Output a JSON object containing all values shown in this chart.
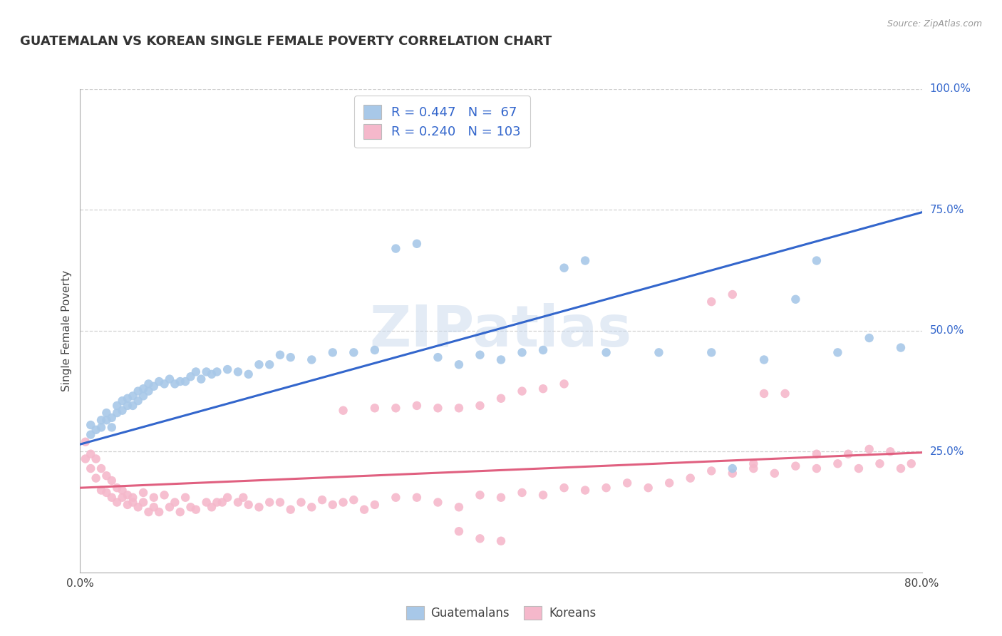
{
  "title": "GUATEMALAN VS KOREAN SINGLE FEMALE POVERTY CORRELATION CHART",
  "source": "Source: ZipAtlas.com",
  "ylabel": "Single Female Poverty",
  "legend_label_1": "Guatemalans",
  "legend_label_2": "Koreans",
  "R1": 0.447,
  "N1": 67,
  "R2": 0.24,
  "N2": 103,
  "blue_color": "#a8c8e8",
  "pink_color": "#f5b8cb",
  "line_blue": "#3366cc",
  "line_pink": "#e06080",
  "ytick_vals": [
    0.25,
    0.5,
    0.75,
    1.0
  ],
  "ytick_labels": [
    "25.0%",
    "50.0%",
    "75.0%",
    "100.0%"
  ],
  "blue_line_x0": 0.0,
  "blue_line_y0": 0.265,
  "blue_line_x1": 0.8,
  "blue_line_y1": 0.745,
  "pink_line_x0": 0.0,
  "pink_line_y0": 0.175,
  "pink_line_x1": 0.8,
  "pink_line_y1": 0.248,
  "xmin": 0.0,
  "xmax": 0.8,
  "ymin": 0.0,
  "ymax": 1.0,
  "blue_scatter_x": [
    0.01,
    0.01,
    0.015,
    0.02,
    0.02,
    0.025,
    0.025,
    0.03,
    0.03,
    0.035,
    0.035,
    0.04,
    0.04,
    0.045,
    0.045,
    0.05,
    0.05,
    0.055,
    0.055,
    0.06,
    0.06,
    0.065,
    0.065,
    0.07,
    0.075,
    0.08,
    0.085,
    0.09,
    0.095,
    0.1,
    0.105,
    0.11,
    0.115,
    0.12,
    0.125,
    0.13,
    0.14,
    0.15,
    0.16,
    0.17,
    0.18,
    0.19,
    0.2,
    0.22,
    0.24,
    0.26,
    0.28,
    0.3,
    0.32,
    0.34,
    0.36,
    0.38,
    0.4,
    0.42,
    0.44,
    0.46,
    0.48,
    0.5,
    0.55,
    0.6,
    0.62,
    0.65,
    0.68,
    0.7,
    0.72,
    0.75,
    0.78
  ],
  "blue_scatter_y": [
    0.285,
    0.305,
    0.295,
    0.315,
    0.3,
    0.315,
    0.33,
    0.3,
    0.32,
    0.33,
    0.345,
    0.335,
    0.355,
    0.345,
    0.36,
    0.345,
    0.365,
    0.355,
    0.375,
    0.365,
    0.38,
    0.375,
    0.39,
    0.385,
    0.395,
    0.39,
    0.4,
    0.39,
    0.395,
    0.395,
    0.405,
    0.415,
    0.4,
    0.415,
    0.41,
    0.415,
    0.42,
    0.415,
    0.41,
    0.43,
    0.43,
    0.45,
    0.445,
    0.44,
    0.455,
    0.455,
    0.46,
    0.67,
    0.68,
    0.445,
    0.43,
    0.45,
    0.44,
    0.455,
    0.46,
    0.63,
    0.645,
    0.455,
    0.455,
    0.455,
    0.215,
    0.44,
    0.565,
    0.645,
    0.455,
    0.485,
    0.465
  ],
  "pink_scatter_x": [
    0.005,
    0.005,
    0.01,
    0.01,
    0.015,
    0.015,
    0.02,
    0.02,
    0.025,
    0.025,
    0.03,
    0.03,
    0.035,
    0.035,
    0.04,
    0.04,
    0.045,
    0.045,
    0.05,
    0.05,
    0.055,
    0.06,
    0.06,
    0.065,
    0.07,
    0.07,
    0.075,
    0.08,
    0.085,
    0.09,
    0.095,
    0.1,
    0.105,
    0.11,
    0.12,
    0.125,
    0.13,
    0.135,
    0.14,
    0.15,
    0.155,
    0.16,
    0.17,
    0.18,
    0.19,
    0.2,
    0.21,
    0.22,
    0.23,
    0.24,
    0.25,
    0.26,
    0.27,
    0.28,
    0.3,
    0.32,
    0.34,
    0.36,
    0.38,
    0.4,
    0.42,
    0.44,
    0.46,
    0.48,
    0.5,
    0.52,
    0.54,
    0.56,
    0.58,
    0.6,
    0.62,
    0.64,
    0.66,
    0.68,
    0.7,
    0.72,
    0.74,
    0.76,
    0.78,
    0.25,
    0.28,
    0.3,
    0.32,
    0.34,
    0.36,
    0.38,
    0.4,
    0.42,
    0.44,
    0.46,
    0.65,
    0.67,
    0.7,
    0.73,
    0.75,
    0.77,
    0.79,
    0.6,
    0.62,
    0.64,
    0.36,
    0.38,
    0.4
  ],
  "pink_scatter_y": [
    0.27,
    0.235,
    0.215,
    0.245,
    0.195,
    0.235,
    0.17,
    0.215,
    0.165,
    0.2,
    0.155,
    0.19,
    0.145,
    0.175,
    0.155,
    0.17,
    0.14,
    0.16,
    0.145,
    0.155,
    0.135,
    0.165,
    0.145,
    0.125,
    0.135,
    0.155,
    0.125,
    0.16,
    0.135,
    0.145,
    0.125,
    0.155,
    0.135,
    0.13,
    0.145,
    0.135,
    0.145,
    0.145,
    0.155,
    0.145,
    0.155,
    0.14,
    0.135,
    0.145,
    0.145,
    0.13,
    0.145,
    0.135,
    0.15,
    0.14,
    0.145,
    0.15,
    0.13,
    0.14,
    0.155,
    0.155,
    0.145,
    0.135,
    0.16,
    0.155,
    0.165,
    0.16,
    0.175,
    0.17,
    0.175,
    0.185,
    0.175,
    0.185,
    0.195,
    0.21,
    0.205,
    0.215,
    0.205,
    0.22,
    0.215,
    0.225,
    0.215,
    0.225,
    0.215,
    0.335,
    0.34,
    0.34,
    0.345,
    0.34,
    0.34,
    0.345,
    0.36,
    0.375,
    0.38,
    0.39,
    0.37,
    0.37,
    0.245,
    0.245,
    0.255,
    0.25,
    0.225,
    0.56,
    0.575,
    0.225,
    0.085,
    0.07,
    0.065
  ]
}
